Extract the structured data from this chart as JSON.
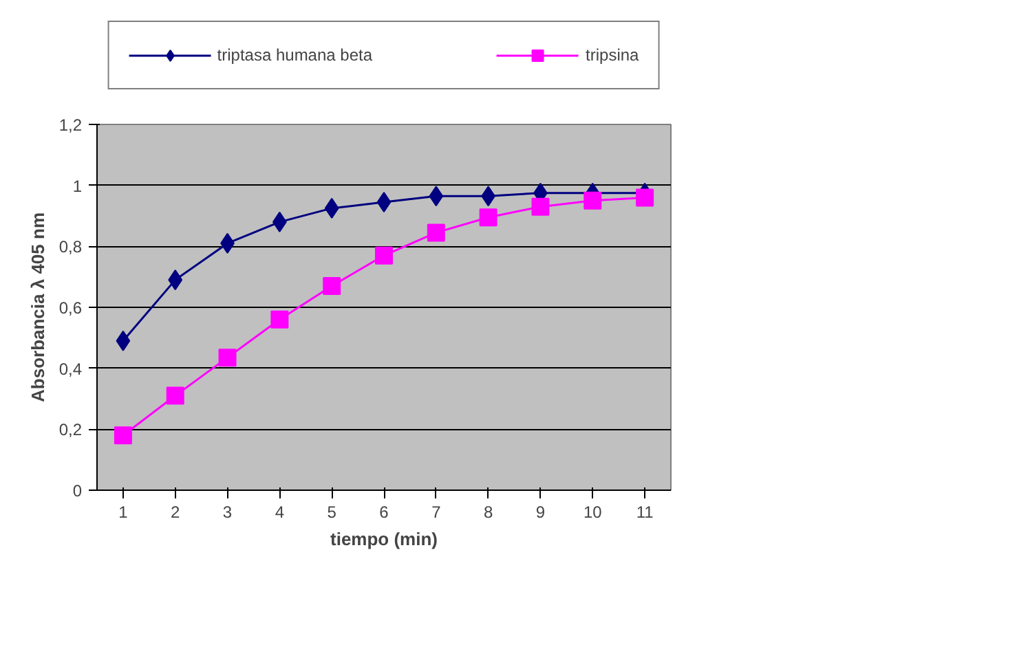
{
  "chart_data": {
    "type": "line",
    "xlabel": "tiempo (min)",
    "ylabel": "Absorbancia λ 405 nm",
    "categories": [
      "1",
      "2",
      "3",
      "4",
      "5",
      "6",
      "7",
      "8",
      "9",
      "10",
      "11"
    ],
    "series": [
      {
        "name": "triptasa humana beta",
        "color": "#000080",
        "marker": "diamond",
        "values": [
          0.49,
          0.69,
          0.81,
          0.88,
          0.925,
          0.945,
          0.965,
          0.965,
          0.975,
          0.975,
          0.975
        ]
      },
      {
        "name": "tripsina",
        "color": "#ff00ff",
        "marker": "square",
        "values": [
          0.18,
          0.31,
          0.435,
          0.56,
          0.67,
          0.77,
          0.845,
          0.895,
          0.93,
          0.95,
          0.96
        ]
      }
    ],
    "ylim": [
      0,
      1.2
    ],
    "yticks": [
      0,
      {
        "value": 0.2,
        "label": "0,2"
      },
      {
        "value": 0.4,
        "label": "0,4"
      },
      {
        "value": 0.6,
        "label": "0,6"
      },
      {
        "value": 0.8,
        "label": "0,8"
      },
      1,
      {
        "value": 1.2,
        "label": "1,2"
      }
    ],
    "grid": "y",
    "legend": "top",
    "line_style": "solid"
  }
}
